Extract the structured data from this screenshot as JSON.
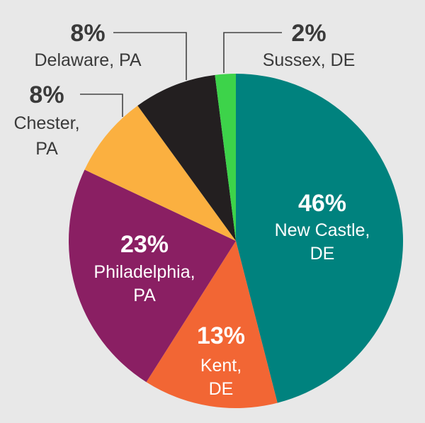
{
  "chart_data": {
    "type": "pie",
    "title": "",
    "slices": [
      {
        "pct_label": "46%",
        "name_lines": [
          "New Castle,",
          "DE"
        ],
        "value": 46,
        "color": "#00827e"
      },
      {
        "pct_label": "13%",
        "name_lines": [
          "Kent,",
          "DE"
        ],
        "value": 13,
        "color": "#f26634"
      },
      {
        "pct_label": "23%",
        "name_lines": [
          "Philadelphia,",
          "PA"
        ],
        "value": 23,
        "color": "#8a1f63"
      },
      {
        "pct_label": "8%",
        "name_lines": [
          "Chester,",
          "PA"
        ],
        "value": 8,
        "color": "#fbb040"
      },
      {
        "pct_label": "8%",
        "name_lines": [
          "Delaware, PA"
        ],
        "value": 8,
        "color": "#231f20"
      },
      {
        "pct_label": "2%",
        "name_lines": [
          "Sussex, DE"
        ],
        "value": 2,
        "color": "#3dd34a"
      }
    ]
  }
}
